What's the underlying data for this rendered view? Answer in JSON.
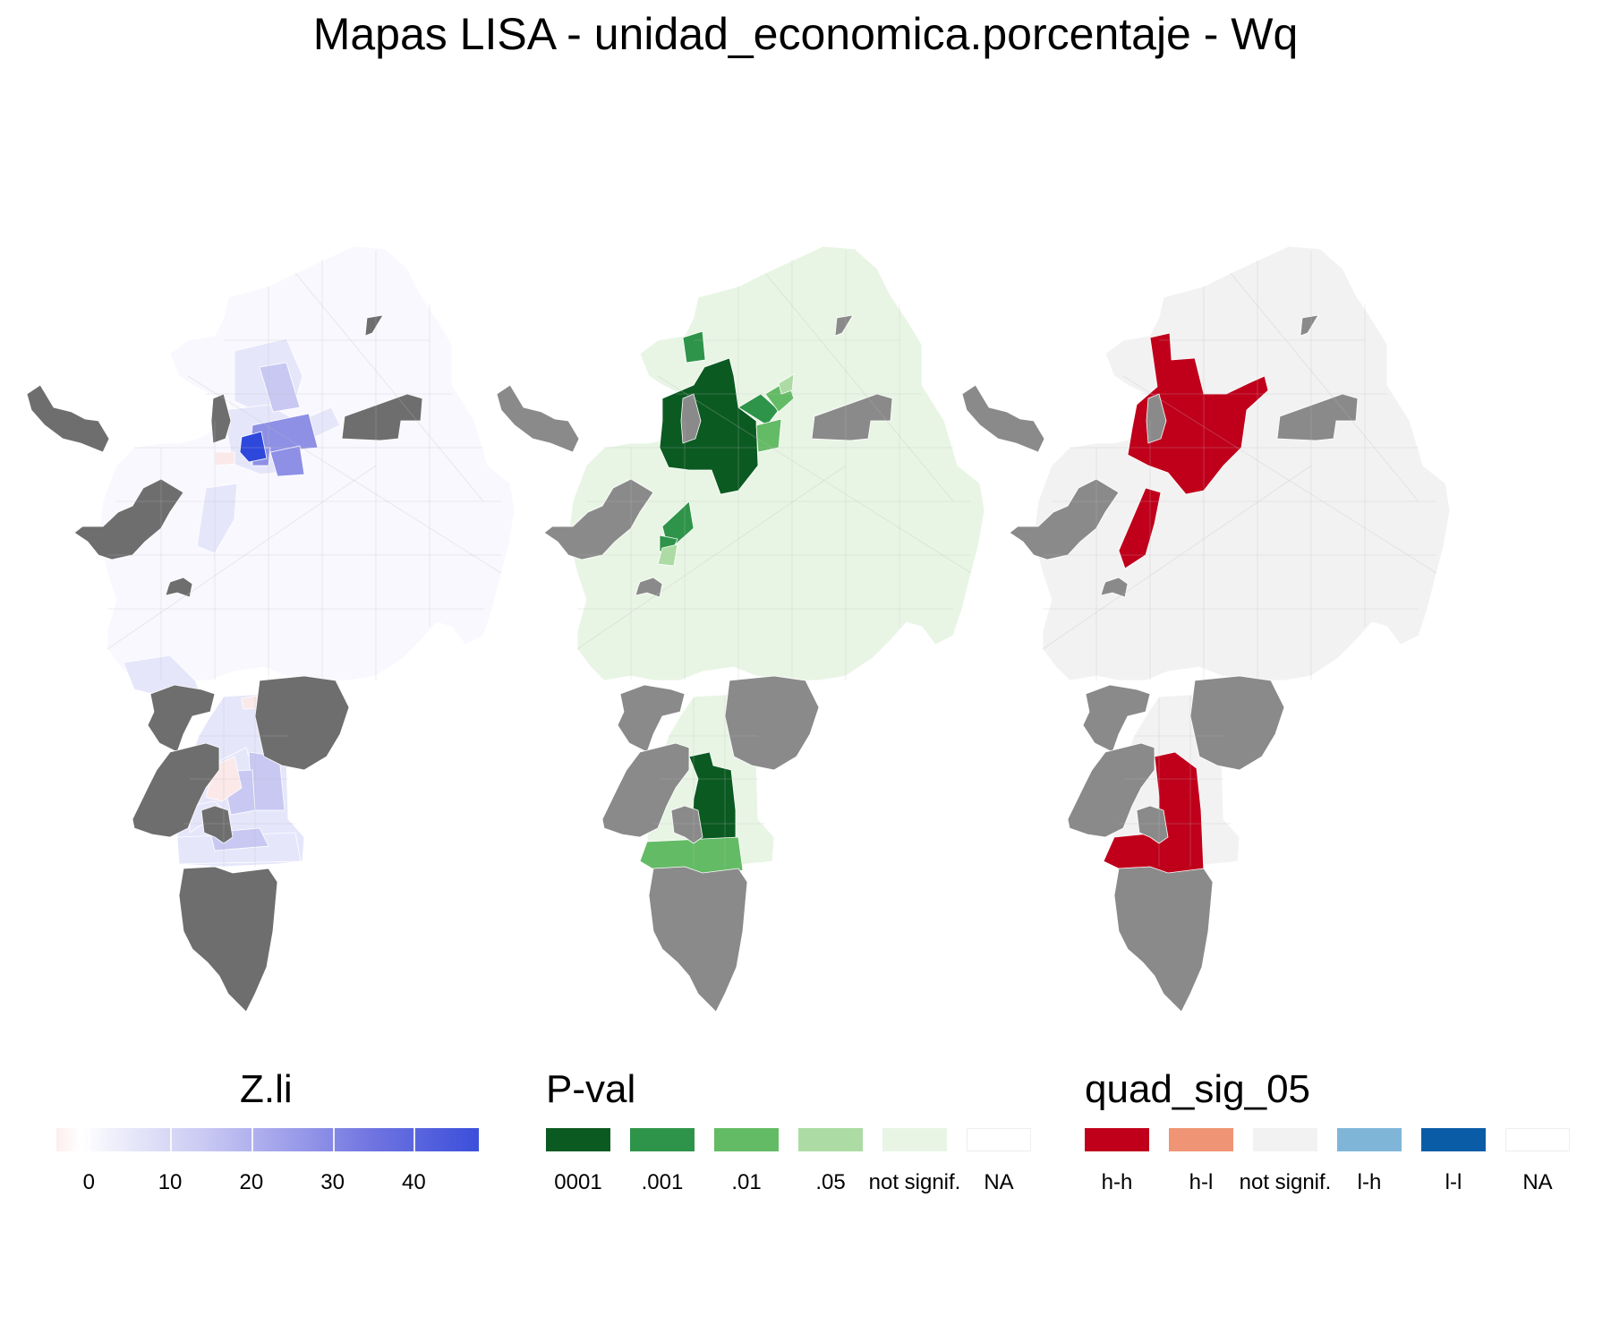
{
  "title": "Mapas LISA - unidad_economica.porcentaje - Wq",
  "colors": {
    "na_fill": "#6e6e6e",
    "na_fill_light": "#8a8a8a",
    "zli_base": "#f8f8fe",
    "zli_light": "#e6e6fb",
    "zli_mid": "#c8c8f3",
    "zli_strong": "#8e90e6",
    "zli_max": "#2e48dc",
    "zli_neg": "#fbe8e8",
    "pval_notsig": "#e8f5e4",
    "pval_0001": "#0b5a22",
    "pval_001": "#2e9449",
    "pval_01": "#64bb65",
    "pval_05": "#acdca4",
    "quad_notsig": "#f2f2f2",
    "quad_hh": "#c0001b"
  },
  "legends": {
    "zli": {
      "title": "Z.li",
      "ticks": [
        "0",
        "10",
        "20",
        "30",
        "40"
      ],
      "range": [
        -4,
        48
      ]
    },
    "pval": {
      "title": "P-val",
      "items": [
        {
          "label": "0001",
          "color": "#0b5a22"
        },
        {
          "label": ".001",
          "color": "#2e9449"
        },
        {
          "label": ".01",
          "color": "#64bb65"
        },
        {
          "label": ".05",
          "color": "#acdca4"
        },
        {
          "label": "not signif.",
          "color": "#e8f5e4"
        },
        {
          "label": "NA",
          "color": "#ffffff"
        }
      ]
    },
    "quad": {
      "title": "quad_sig_05",
      "items": [
        {
          "label": "h-h",
          "color": "#c0001b"
        },
        {
          "label": "h-l",
          "color": "#ef9575"
        },
        {
          "label": "not signif.",
          "color": "#f2f2f2"
        },
        {
          "label": "l-h",
          "color": "#7fb6d8"
        },
        {
          "label": "l-l",
          "color": "#0b5ca6"
        },
        {
          "label": "NA",
          "color": "#ffffff"
        }
      ]
    }
  }
}
